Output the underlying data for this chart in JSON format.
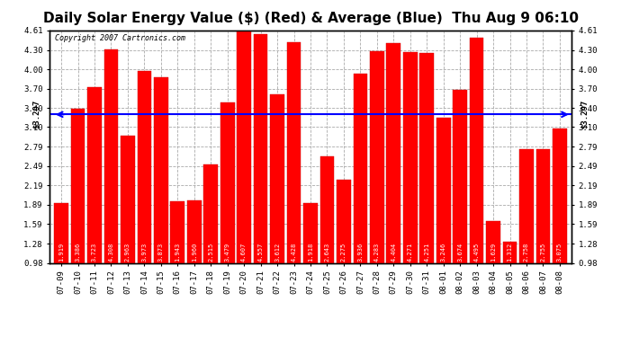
{
  "title": "Daily Solar Energy Value ($) (Red) & Average (Blue)  Thu Aug 9 06:10",
  "copyright": "Copyright 2007 Cartronics.com",
  "average": 3.297,
  "categories": [
    "07-09",
    "07-10",
    "07-11",
    "07-12",
    "07-13",
    "07-14",
    "07-15",
    "07-16",
    "07-17",
    "07-18",
    "07-19",
    "07-20",
    "07-21",
    "07-22",
    "07-23",
    "07-24",
    "07-25",
    "07-26",
    "07-27",
    "07-28",
    "07-29",
    "07-30",
    "07-31",
    "08-01",
    "08-02",
    "08-03",
    "08-04",
    "08-05",
    "08-06",
    "08-07",
    "08-08"
  ],
  "values": [
    1.919,
    3.386,
    3.723,
    4.308,
    2.963,
    3.973,
    3.873,
    1.943,
    1.96,
    2.515,
    3.479,
    4.607,
    4.557,
    3.612,
    4.428,
    1.918,
    2.643,
    2.275,
    3.936,
    4.283,
    4.404,
    4.271,
    4.251,
    3.246,
    3.674,
    4.495,
    1.629,
    1.312,
    2.758,
    2.755,
    3.075
  ],
  "bar_color": "#ff0000",
  "line_color": "#0000ff",
  "background_color": "#ffffff",
  "grid_color": "#aaaaaa",
  "yticks": [
    0.98,
    1.28,
    1.59,
    1.89,
    2.19,
    2.49,
    2.79,
    3.1,
    3.4,
    3.7,
    4.0,
    4.3,
    4.61
  ],
  "ylim_min": 0.98,
  "ylim_max": 4.61,
  "title_fontsize": 11,
  "bar_width": 0.85
}
